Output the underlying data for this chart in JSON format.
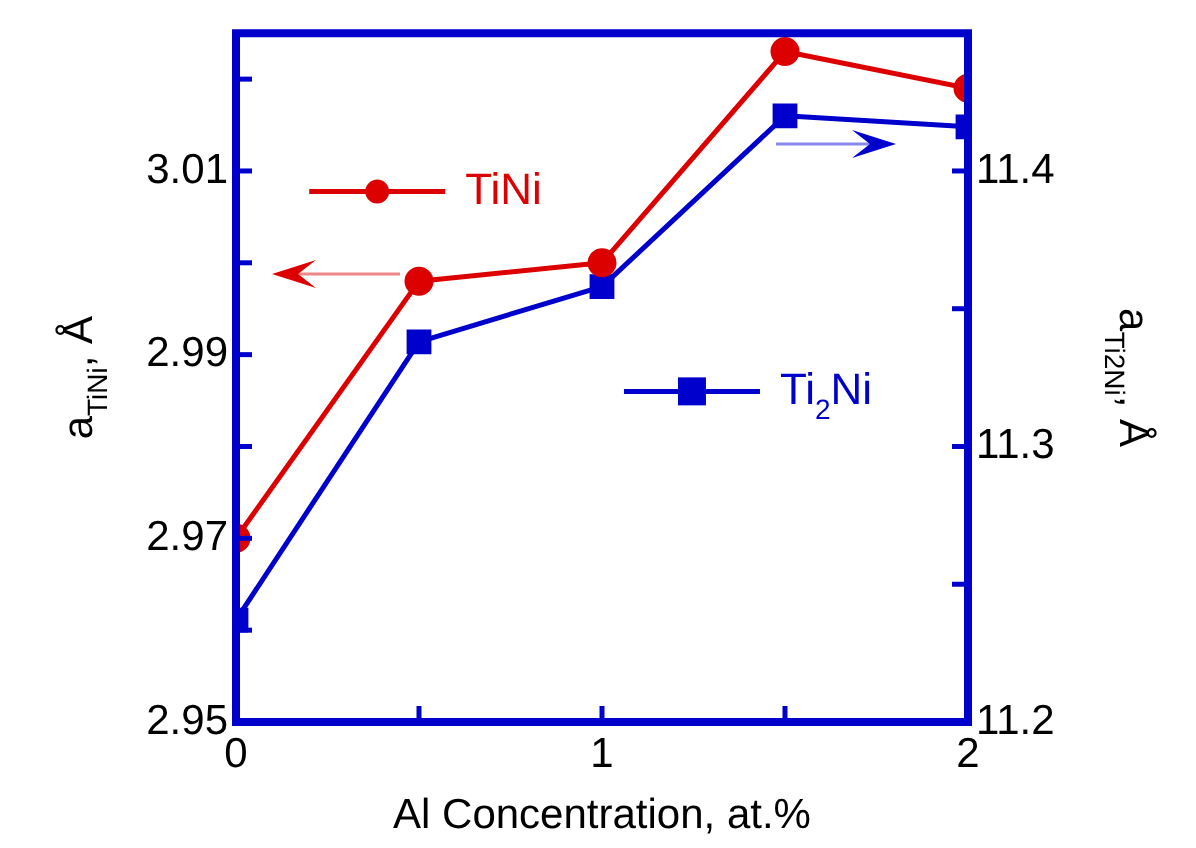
{
  "chart_data": {
    "type": "line",
    "xlabel": "Al Concentration, at.%",
    "ylabel": "a$_{TiNi}$, Å",
    "y2label": "a$_{Ti2Ni}$, Å",
    "x": [
      0,
      0.5,
      1,
      1.5,
      2
    ],
    "xlim": [
      0,
      2
    ],
    "xticks": [
      0,
      {
        "value": 0.5,
        "label": null
      },
      1,
      {
        "value": 1.5,
        "label": null
      },
      2
    ],
    "ylim": [
      2.95,
      3.025
    ],
    "yticks": [
      2.95,
      {
        "value": 2.96,
        "label": null
      },
      2.97,
      {
        "value": 2.98,
        "label": null
      },
      2.99,
      {
        "value": 3.0,
        "label": null
      },
      3.01,
      {
        "value": 3.02,
        "label": null
      }
    ],
    "y2lim": [
      11.2,
      11.45
    ],
    "y2ticks": [
      11.2,
      {
        "value": 11.25,
        "label": null
      },
      11.3,
      {
        "value": 11.35,
        "label": null
      },
      11.4
    ],
    "legend": "top left",
    "line_style": "solid",
    "grid": false,
    "series": [
      {
        "name": "TiNi",
        "color": "#dd0000",
        "marker": "circle",
        "values": [
          2.97,
          2.998,
          3.0,
          3.023,
          3.019
        ]
      },
      {
        "name": "Ti$_{2}$Ni",
        "color": "#0000cc",
        "marker": "square",
        "axis": "y2",
        "values": [
          11.237,
          11.338,
          11.358,
          11.42,
          11.416
        ]
      }
    ]
  }
}
